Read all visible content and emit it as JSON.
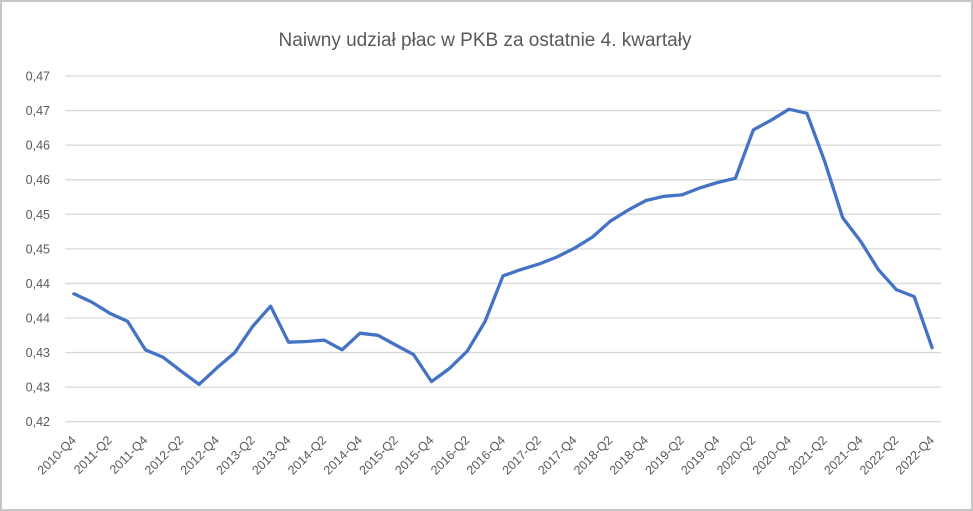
{
  "chart_data": {
    "type": "line",
    "title": "Naiwny udział płac w PKB za ostatnie 4. kwartały",
    "legend": "none",
    "grid": "horizontal",
    "line_color": "#4472C4",
    "gridline_color": "#D9D9D9",
    "axis_label_color": "#595959",
    "title_color": "#595959",
    "ylim": [
      0.42,
      0.47
    ],
    "y_tick_values": [
      0.47,
      0.465,
      0.46,
      0.455,
      0.45,
      0.445,
      0.44,
      0.435,
      0.43,
      0.425,
      0.42
    ],
    "y_tick_labels": [
      "0,47",
      "0,47",
      "0,46",
      "0,46",
      "0,45",
      "0,45",
      "0,44",
      "0,44",
      "0,43",
      "0,43",
      "0,42"
    ],
    "x_tick_labels": [
      "2010-Q4",
      "2011-Q2",
      "2011-Q4",
      "2012-Q2",
      "2012-Q4",
      "2013-Q2",
      "2013-Q4",
      "2014-Q2",
      "2014-Q4",
      "2015-Q2",
      "2015-Q4",
      "2016-Q2",
      "2016-Q4",
      "2017-Q2",
      "2017-Q4",
      "2018-Q2",
      "2018-Q4",
      "2019-Q2",
      "2019-Q4",
      "2020-Q2",
      "2020-Q4",
      "2021-Q2",
      "2021-Q4",
      "2022-Q2",
      "2022-Q4"
    ],
    "categories": [
      "2010-Q4",
      "2011-Q1",
      "2011-Q2",
      "2011-Q3",
      "2011-Q4",
      "2012-Q1",
      "2012-Q2",
      "2012-Q3",
      "2012-Q4",
      "2013-Q1",
      "2013-Q2",
      "2013-Q3",
      "2013-Q4",
      "2014-Q1",
      "2014-Q2",
      "2014-Q3",
      "2014-Q4",
      "2015-Q1",
      "2015-Q2",
      "2015-Q3",
      "2015-Q4",
      "2016-Q1",
      "2016-Q2",
      "2016-Q3",
      "2016-Q4",
      "2017-Q1",
      "2017-Q2",
      "2017-Q3",
      "2017-Q4",
      "2018-Q1",
      "2018-Q2",
      "2018-Q3",
      "2018-Q4",
      "2019-Q1",
      "2019-Q2",
      "2019-Q3",
      "2019-Q4",
      "2020-Q1",
      "2020-Q2",
      "2020-Q3",
      "2020-Q4",
      "2021-Q1",
      "2021-Q2",
      "2021-Q3",
      "2021-Q4",
      "2022-Q1",
      "2022-Q2",
      "2022-Q3",
      "2022-Q4"
    ],
    "values": [
      0.4385,
      0.4373,
      0.4357,
      0.4345,
      0.4304,
      0.4293,
      0.4273,
      0.4254,
      0.4278,
      0.43,
      0.4338,
      0.4367,
      0.4315,
      0.4316,
      0.4318,
      0.4304,
      0.4328,
      0.4325,
      0.4311,
      0.4297,
      0.4258,
      0.4277,
      0.4302,
      0.4345,
      0.4411,
      0.442,
      0.4428,
      0.4438,
      0.4451,
      0.4467,
      0.449,
      0.4506,
      0.452,
      0.4526,
      0.4528,
      0.4538,
      0.4546,
      0.4552,
      0.4622,
      0.4636,
      0.4652,
      0.4646,
      0.4576,
      0.4495,
      0.4461,
      0.442,
      0.4391,
      0.4381,
      0.4307
    ]
  }
}
